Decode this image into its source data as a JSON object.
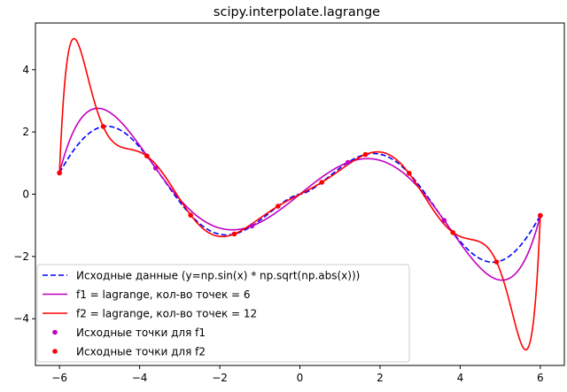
{
  "chart_data": {
    "type": "line",
    "title": "scipy.interpolate.lagrange",
    "xlabel": "",
    "ylabel": "",
    "xlim": [
      -6.6,
      6.6
    ],
    "ylim": [
      -5.5,
      5.5
    ],
    "x_ticks": [
      -6,
      -4,
      -2,
      0,
      2,
      4,
      6
    ],
    "x_tick_labels": [
      "−6",
      "−4",
      "−2",
      "0",
      "2",
      "4",
      "6"
    ],
    "y_ticks": [
      -4,
      -2,
      0,
      2,
      4
    ],
    "y_tick_labels": [
      "−4",
      "−2",
      "0",
      "2",
      "4"
    ],
    "grid": false,
    "legend_position": "lower-left",
    "series": [
      {
        "name": "Исходные данные (y=np.sin(x) * np.sqrt(np.abs(x)))",
        "color": "#0000ff",
        "style": "dashed",
        "function": "sin(x)*sqrt(|x|)",
        "x_range": [
          -6,
          6
        ]
      },
      {
        "name": "f1 = lagrange, кол-во точек = 6",
        "color": "#bf00bf",
        "style": "solid",
        "nodes_x": [
          -6,
          -3.6,
          -1.2,
          1.2,
          3.6,
          6
        ]
      },
      {
        "name": "f2 = lagrange, кол-во точек = 12",
        "color": "#ff0000",
        "style": "solid",
        "nodes_x": [
          -6,
          -4.9091,
          -3.8182,
          -2.7273,
          -1.6364,
          -0.5455,
          0.5455,
          1.6364,
          2.7273,
          3.8182,
          4.9091,
          6
        ]
      },
      {
        "name": "Исходные точки для f1",
        "color": "#bf00bf",
        "style": "markers",
        "x": [
          -6,
          -3.6,
          -1.2,
          1.2,
          3.6,
          6
        ],
        "y": [
          0.684,
          0.84,
          -1.021,
          1.021,
          -0.84,
          -0.684
        ]
      },
      {
        "name": "Исходные точки для f2",
        "color": "#ff0000",
        "style": "markers",
        "x": [
          -6,
          -4.9091,
          -3.8182,
          -2.7273,
          -1.6364,
          -0.5455,
          0.5455,
          1.6364,
          2.7273,
          3.8182,
          4.9091,
          6
        ],
        "y": [
          0.684,
          2.176,
          1.23,
          -0.673,
          -1.276,
          -0.384,
          0.384,
          1.276,
          0.673,
          -1.23,
          -2.176,
          -0.684
        ]
      }
    ]
  }
}
